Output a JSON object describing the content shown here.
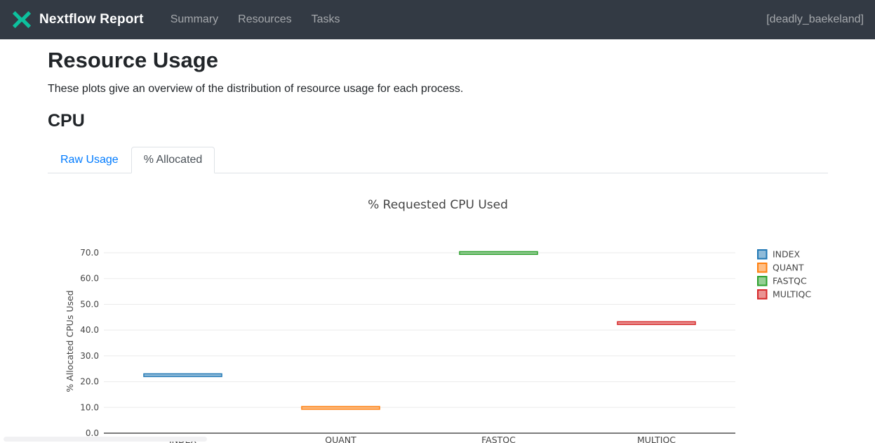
{
  "header": {
    "brand": "Nextflow Report",
    "nav": [
      {
        "label": "Summary"
      },
      {
        "label": "Resources"
      },
      {
        "label": "Tasks"
      }
    ],
    "run_name": "[deadly_baekeland]",
    "colors": {
      "navbar_bg": "#333a44",
      "brand_teal": "#0dc09d"
    }
  },
  "page": {
    "title": "Resource Usage",
    "description": "These plots give an overview of the distribution of resource usage for each process.",
    "section_title": "CPU"
  },
  "tabs": [
    {
      "label": "Raw Usage",
      "active": false
    },
    {
      "label": "% Allocated",
      "active": true
    }
  ],
  "chart_data": {
    "type": "box",
    "title": "% Requested CPU Used",
    "xlabel": "",
    "ylabel": "% Allocated CPUs Used",
    "categories": [
      "INDEX",
      "QUANT",
      "FASTQC",
      "MULTIQC"
    ],
    "series": [
      {
        "name": "INDEX",
        "color": "#1f77b4",
        "value": 22.5
      },
      {
        "name": "QUANT",
        "color": "#ff7f0e",
        "value": 9.8
      },
      {
        "name": "FASTQC",
        "color": "#2ca02c",
        "value": 69.9
      },
      {
        "name": "MULTIQC",
        "color": "#d62728",
        "value": 42.7
      }
    ],
    "yticks": [
      0,
      10,
      20,
      30,
      40,
      50,
      60,
      70
    ],
    "ytick_labels": [
      "0.0",
      "10.0",
      "20.0",
      "30.0",
      "40.0",
      "50.0",
      "60.0",
      "70.0"
    ],
    "ylim": [
      0,
      74
    ],
    "grid": true,
    "legend_position": "right",
    "colors": {
      "gridline": "#ebebeb",
      "zeroline": "#7c7c7c",
      "text": "#444444"
    }
  }
}
